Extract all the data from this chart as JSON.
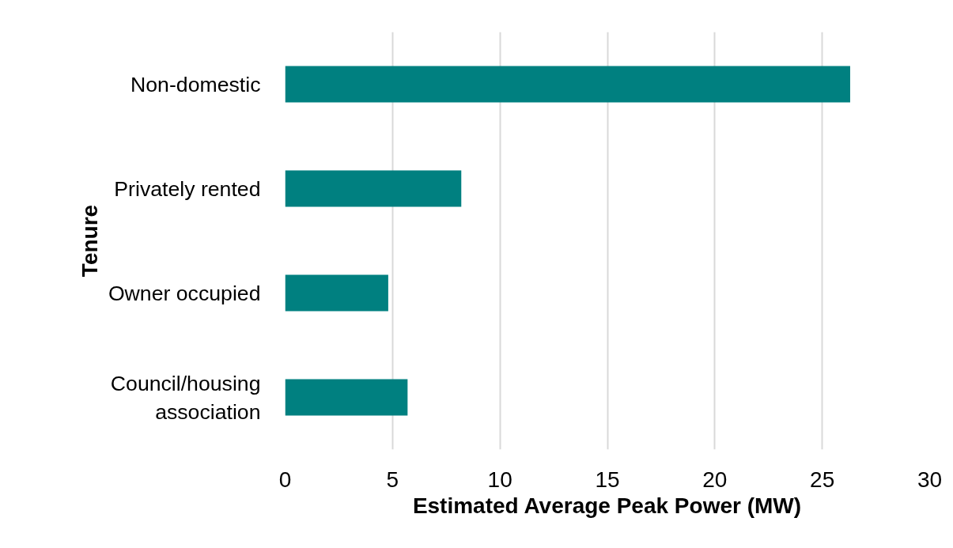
{
  "chart_data": {
    "type": "bar",
    "orientation": "horizontal",
    "xlabel": "Estimated Average Peak Power (MW)",
    "ylabel": "Tenure",
    "categories": [
      "Non-domestic",
      "Privately rented",
      "Owner occupied",
      "Council/housing association"
    ],
    "values": [
      26.3,
      8.2,
      4.8,
      5.7
    ],
    "color": "#008080",
    "xlim": [
      0,
      30
    ],
    "xticks": [
      0,
      5,
      10,
      15,
      20,
      25,
      30
    ],
    "grid": "x"
  }
}
